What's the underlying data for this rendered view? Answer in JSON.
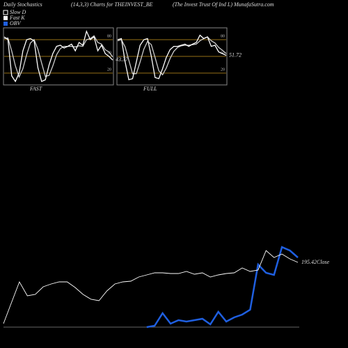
{
  "header": {
    "left": "Daily Stochastics",
    "center": "(14,3,3) Charts for THEINVEST_BE",
    "right": "(The  Invest Trust Of Ind L) MunafaSutra.com"
  },
  "chart_data": [
    {
      "type": "line",
      "x_label": "FAST",
      "ylim": [
        0,
        100
      ],
      "yticks": [
        20,
        50,
        80
      ],
      "tick_line_color": "#c8961e",
      "series": [
        {
          "name": "Fast K",
          "color": "#ffffff",
          "show_last_value": true,
          "values": [
            85,
            80,
            15,
            5,
            20,
            60,
            80,
            82,
            78,
            30,
            5,
            8,
            35,
            55,
            68,
            70,
            65,
            68,
            72,
            60,
            75,
            70,
            95,
            80,
            85,
            60,
            70,
            55,
            50,
            43.37
          ]
        },
        {
          "name": "Slow D",
          "color": "#cccccc",
          "values": [
            82,
            83,
            60,
            33,
            13,
            28,
            53,
            74,
            80,
            63,
            38,
            14,
            16,
            33,
            53,
            64,
            68,
            68,
            68,
            67,
            69,
            68,
            80,
            82,
            87,
            75,
            72,
            62,
            58,
            49
          ]
        }
      ]
    },
    {
      "type": "line",
      "x_label": "FULL",
      "ylim": [
        0,
        100
      ],
      "yticks": [
        20,
        50,
        80
      ],
      "tick_line_color": "#c8961e",
      "series": [
        {
          "name": "Fast K",
          "color": "#ffffff",
          "show_last_value": true,
          "values": [
            80,
            82,
            40,
            8,
            10,
            40,
            70,
            80,
            82,
            50,
            12,
            10,
            28,
            48,
            62,
            68,
            68,
            70,
            72,
            68,
            72,
            75,
            88,
            82,
            85,
            68,
            70,
            58,
            55,
            51.72
          ]
        },
        {
          "name": "Slow D",
          "color": "#cccccc",
          "values": [
            78,
            80,
            67,
            43,
            19,
            19,
            40,
            63,
            77,
            71,
            48,
            24,
            17,
            29,
            46,
            59,
            66,
            69,
            70,
            70,
            71,
            72,
            78,
            82,
            85,
            78,
            74,
            66,
            61,
            55
          ]
        }
      ]
    },
    {
      "type": "line",
      "ylim": [
        148.9,
        233.9
      ],
      "y2lim": [
        0,
        170
      ],
      "series": [
        {
          "color": "#ffffff",
          "values": [
            151.4,
            166.4,
            181.4,
            171.4,
            172.4,
            177.9,
            179.9,
            181.4,
            181.4,
            177.4,
            172.4,
            168.9,
            167.9,
            174.9,
            179.9,
            181.4,
            181.9,
            184.9,
            186.4,
            187.9,
            187.9,
            187.4,
            187.4,
            188.9,
            186.9,
            187.9,
            184.9,
            186.4,
            187.4,
            187.9,
            191.4,
            188.9,
            189.9,
            203.9,
            198.9,
            201.4,
            197.9,
            195.42
          ],
          "value_labels": [
            null,
            null,
            null,
            null,
            null,
            null,
            null,
            null,
            null,
            null,
            null,
            null,
            null,
            null,
            null,
            null,
            null,
            null,
            null,
            null,
            null,
            null,
            null,
            null,
            null,
            null,
            null,
            null,
            null,
            null,
            null,
            null,
            null,
            null,
            null,
            null,
            null,
            "195.42Close"
          ]
        },
        {
          "name": "OBV",
          "color": "#1f5fe0",
          "axis": "y2",
          "values": [
            null,
            null,
            null,
            null,
            null,
            null,
            null,
            null,
            null,
            null,
            null,
            null,
            null,
            null,
            null,
            null,
            null,
            null,
            0,
            2,
            20,
            5,
            10,
            8,
            10,
            12,
            4,
            22,
            8,
            14,
            18,
            25,
            90,
            78,
            75,
            115,
            110,
            100
          ]
        }
      ]
    }
  ]
}
